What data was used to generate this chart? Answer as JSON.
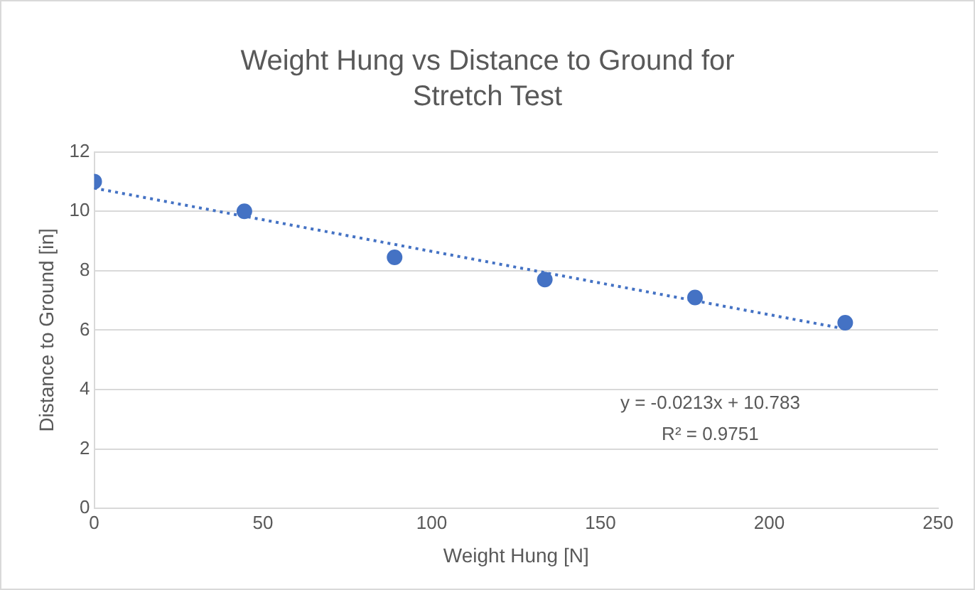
{
  "chart_data": {
    "type": "scatter",
    "title": "Weight Hung vs Distance to Ground for Stretch Test",
    "xlabel": "Weight Hung [N]",
    "ylabel": "Distance to Ground [in]",
    "series": [
      {
        "color": "#4472c4",
        "marker": "circle",
        "x": [
          0,
          44.5,
          89,
          133.5,
          178,
          222.5
        ],
        "values": [
          11.0,
          10.0,
          8.45,
          7.7,
          7.1,
          6.25
        ]
      },
      {
        "type": "line",
        "color": "#4472c4",
        "marker": "none",
        "line_style": "dotted",
        "x": [
          0,
          222.5
        ],
        "values": [
          10.78,
          6.04
        ]
      }
    ],
    "xlim": [
      0,
      250
    ],
    "xticks": [
      0,
      50,
      100,
      150,
      200,
      250
    ],
    "ylim": [
      0,
      12
    ],
    "yticks": [
      0,
      2,
      4,
      6,
      8,
      10,
      12
    ],
    "grid": "y",
    "legend": false,
    "annotations": [
      "y = -0.0213x + 10.783",
      "R² = 0.9751"
    ]
  }
}
